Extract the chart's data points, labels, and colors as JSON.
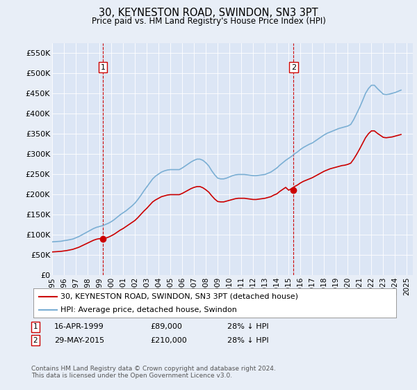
{
  "title": "30, KEYNESTON ROAD, SWINDON, SN3 3PT",
  "subtitle": "Price paid vs. HM Land Registry's House Price Index (HPI)",
  "background_color": "#e8eef7",
  "plot_bg_color": "#dce6f5",
  "grid_color": "#ffffff",
  "ylim": [
    0,
    575000
  ],
  "yticks": [
    0,
    50000,
    100000,
    150000,
    200000,
    250000,
    300000,
    350000,
    400000,
    450000,
    500000,
    550000
  ],
  "xmin_year": 1995.0,
  "xmax_year": 2025.5,
  "transaction1": {
    "date_x": 1999.29,
    "price": 89000,
    "label": "1"
  },
  "transaction2": {
    "date_x": 2015.41,
    "price": 210000,
    "label": "2"
  },
  "red_line_color": "#cc0000",
  "blue_line_color": "#7bafd4",
  "legend_entries": [
    "30, KEYNESTON ROAD, SWINDON, SN3 3PT (detached house)",
    "HPI: Average price, detached house, Swindon"
  ],
  "ann1_date": "16-APR-1999",
  "ann1_price": "£89,000",
  "ann1_hpi": "28% ↓ HPI",
  "ann2_date": "29-MAY-2015",
  "ann2_price": "£210,000",
  "ann2_hpi": "28% ↓ HPI",
  "footer": "Contains HM Land Registry data © Crown copyright and database right 2024.\nThis data is licensed under the Open Government Licence v3.0.",
  "hpi_data_x": [
    1995.0,
    1995.25,
    1995.5,
    1995.75,
    1996.0,
    1996.25,
    1996.5,
    1996.75,
    1997.0,
    1997.25,
    1997.5,
    1997.75,
    1998.0,
    1998.25,
    1998.5,
    1998.75,
    1999.0,
    1999.25,
    1999.5,
    1999.75,
    2000.0,
    2000.25,
    2000.5,
    2000.75,
    2001.0,
    2001.25,
    2001.5,
    2001.75,
    2002.0,
    2002.25,
    2002.5,
    2002.75,
    2003.0,
    2003.25,
    2003.5,
    2003.75,
    2004.0,
    2004.25,
    2004.5,
    2004.75,
    2005.0,
    2005.25,
    2005.5,
    2005.75,
    2006.0,
    2006.25,
    2006.5,
    2006.75,
    2007.0,
    2007.25,
    2007.5,
    2007.75,
    2008.0,
    2008.25,
    2008.5,
    2008.75,
    2009.0,
    2009.25,
    2009.5,
    2009.75,
    2010.0,
    2010.25,
    2010.5,
    2010.75,
    2011.0,
    2011.25,
    2011.5,
    2011.75,
    2012.0,
    2012.25,
    2012.5,
    2012.75,
    2013.0,
    2013.25,
    2013.5,
    2013.75,
    2014.0,
    2014.25,
    2014.5,
    2014.75,
    2015.0,
    2015.25,
    2015.5,
    2015.75,
    2016.0,
    2016.25,
    2016.5,
    2016.75,
    2017.0,
    2017.25,
    2017.5,
    2017.75,
    2018.0,
    2018.25,
    2018.5,
    2018.75,
    2019.0,
    2019.25,
    2019.5,
    2019.75,
    2020.0,
    2020.25,
    2020.5,
    2020.75,
    2021.0,
    2021.25,
    2021.5,
    2021.75,
    2022.0,
    2022.25,
    2022.5,
    2022.75,
    2023.0,
    2023.25,
    2023.5,
    2023.75,
    2024.0,
    2024.25,
    2024.5
  ],
  "hpi_data_y": [
    82000,
    82500,
    83000,
    83500,
    85000,
    86000,
    87500,
    89000,
    92000,
    95000,
    99000,
    103000,
    107000,
    111000,
    115000,
    118000,
    120000,
    122000,
    125000,
    128000,
    132000,
    137000,
    143000,
    149000,
    154000,
    159000,
    165000,
    171000,
    178000,
    187000,
    197000,
    208000,
    218000,
    228000,
    238000,
    245000,
    250000,
    255000,
    258000,
    260000,
    261000,
    261000,
    261000,
    261000,
    265000,
    270000,
    275000,
    280000,
    284000,
    287000,
    287000,
    284000,
    278000,
    270000,
    258000,
    248000,
    240000,
    238000,
    238000,
    240000,
    243000,
    246000,
    248000,
    249000,
    249000,
    249000,
    248000,
    247000,
    246000,
    246000,
    247000,
    248000,
    249000,
    252000,
    255000,
    260000,
    265000,
    272000,
    278000,
    284000,
    289000,
    294000,
    300000,
    305000,
    311000,
    316000,
    320000,
    324000,
    327000,
    332000,
    337000,
    342000,
    347000,
    351000,
    354000,
    357000,
    360000,
    363000,
    365000,
    367000,
    369000,
    373000,
    385000,
    400000,
    415000,
    432000,
    450000,
    462000,
    470000,
    470000,
    462000,
    455000,
    448000,
    447000,
    448000,
    450000,
    452000,
    455000,
    458000
  ],
  "red_data_x": [
    1995.0,
    1995.25,
    1995.5,
    1995.75,
    1996.0,
    1996.25,
    1996.5,
    1996.75,
    1997.0,
    1997.25,
    1997.5,
    1997.75,
    1998.0,
    1998.25,
    1998.5,
    1998.75,
    1999.0,
    1999.25,
    1999.5,
    1999.75,
    2000.0,
    2000.25,
    2000.5,
    2000.75,
    2001.0,
    2001.25,
    2001.5,
    2001.75,
    2002.0,
    2002.25,
    2002.5,
    2002.75,
    2003.0,
    2003.25,
    2003.5,
    2003.75,
    2004.0,
    2004.25,
    2004.5,
    2004.75,
    2005.0,
    2005.25,
    2005.5,
    2005.75,
    2006.0,
    2006.25,
    2006.5,
    2006.75,
    2007.0,
    2007.25,
    2007.5,
    2007.75,
    2008.0,
    2008.25,
    2008.5,
    2008.75,
    2009.0,
    2009.25,
    2009.5,
    2009.75,
    2010.0,
    2010.25,
    2010.5,
    2010.75,
    2011.0,
    2011.25,
    2011.5,
    2011.75,
    2012.0,
    2012.25,
    2012.5,
    2012.75,
    2013.0,
    2013.25,
    2013.5,
    2013.75,
    2014.0,
    2014.25,
    2014.5,
    2014.75,
    2015.0,
    2015.25,
    2015.5,
    2015.75,
    2016.0,
    2016.25,
    2016.5,
    2016.75,
    2017.0,
    2017.25,
    2017.5,
    2017.75,
    2018.0,
    2018.25,
    2018.5,
    2018.75,
    2019.0,
    2019.25,
    2019.5,
    2019.75,
    2020.0,
    2020.25,
    2020.5,
    2020.75,
    2021.0,
    2021.25,
    2021.5,
    2021.75,
    2022.0,
    2022.25,
    2022.5,
    2022.75,
    2023.0,
    2023.25,
    2023.5,
    2023.75,
    2024.0,
    2024.25,
    2024.5
  ],
  "red_data_y": [
    57000,
    57500,
    58000,
    58500,
    59500,
    60500,
    62000,
    63500,
    66000,
    68500,
    72000,
    75500,
    79000,
    82500,
    86000,
    88500,
    90000,
    89000,
    91000,
    93500,
    97000,
    101000,
    106000,
    111000,
    115000,
    120000,
    125000,
    130000,
    135000,
    142000,
    150000,
    158000,
    165000,
    173000,
    181000,
    186000,
    190000,
    194000,
    196000,
    198000,
    199000,
    199000,
    199000,
    199000,
    202000,
    206000,
    210000,
    214000,
    217000,
    219000,
    219000,
    216000,
    211000,
    205000,
    196000,
    188000,
    182000,
    181000,
    181000,
    183000,
    185000,
    187000,
    189000,
    190000,
    190000,
    190000,
    189000,
    188000,
    187000,
    187000,
    188000,
    189000,
    190000,
    192000,
    194000,
    198000,
    201000,
    207000,
    212000,
    217000,
    210000,
    214000,
    219000,
    223000,
    228000,
    232000,
    235000,
    238000,
    241000,
    245000,
    249000,
    253000,
    257000,
    260000,
    263000,
    265000,
    267000,
    269000,
    271000,
    272000,
    274000,
    277000,
    287000,
    299000,
    312000,
    326000,
    340000,
    350000,
    357000,
    357000,
    351000,
    346000,
    341000,
    340000,
    341000,
    342000,
    344000,
    346000,
    348000
  ],
  "xtick_years": [
    1995,
    1996,
    1997,
    1998,
    1999,
    2000,
    2001,
    2002,
    2003,
    2004,
    2005,
    2006,
    2007,
    2008,
    2009,
    2010,
    2011,
    2012,
    2013,
    2014,
    2015,
    2016,
    2017,
    2018,
    2019,
    2020,
    2021,
    2022,
    2023,
    2024,
    2025
  ]
}
